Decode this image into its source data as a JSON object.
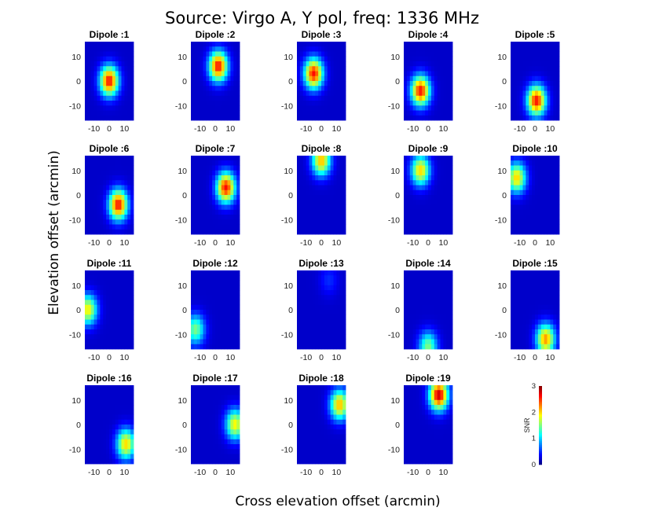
{
  "chart_data": {
    "type": "heatmap",
    "title": "Source: Virgo A, Y pol, freq: 1336 MHz",
    "xlabel": "Cross elevation offset (arcmin)",
    "ylabel": "Elevation offset (arcmin)",
    "xlim": [
      -16,
      16
    ],
    "ylim": [
      -16,
      16
    ],
    "xticks": [
      -10,
      0,
      10
    ],
    "yticks": [
      -10,
      0,
      10
    ],
    "grid": false,
    "colormap": "jet",
    "colorbar": {
      "label": "SNR",
      "range": [
        0,
        3
      ],
      "ticks": [
        0,
        1,
        2,
        3
      ]
    },
    "panels": [
      {
        "title": "Dipole :1",
        "peak_x": 0,
        "peak_y": 0,
        "peak_snr": 2.6
      },
      {
        "title": "Dipole :2",
        "peak_x": 2,
        "peak_y": 6,
        "peak_snr": 2.6
      },
      {
        "title": "Dipole :3",
        "peak_x": -5,
        "peak_y": 3,
        "peak_snr": 2.6
      },
      {
        "title": "Dipole :4",
        "peak_x": -5,
        "peak_y": -4,
        "peak_snr": 2.6
      },
      {
        "title": "Dipole :5",
        "peak_x": 1,
        "peak_y": -8,
        "peak_snr": 2.6
      },
      {
        "title": "Dipole :6",
        "peak_x": 6,
        "peak_y": -4,
        "peak_snr": 2.6
      },
      {
        "title": "Dipole :7",
        "peak_x": 7,
        "peak_y": 3,
        "peak_snr": 2.6
      },
      {
        "title": "Dipole :8",
        "peak_x": 0,
        "peak_y": 14,
        "peak_snr": 2.1
      },
      {
        "title": "Dipole :9",
        "peak_x": -5,
        "peak_y": 10,
        "peak_snr": 2.0
      },
      {
        "title": "Dipole :10",
        "peak_x": -12,
        "peak_y": 7,
        "peak_snr": 2.0
      },
      {
        "title": "Dipole :11",
        "peak_x": -14,
        "peak_y": 0,
        "peak_snr": 1.9
      },
      {
        "title": "Dipole :12",
        "peak_x": -13,
        "peak_y": -8,
        "peak_snr": 1.5
      },
      {
        "title": "Dipole :13",
        "peak_x": 5,
        "peak_y": 12,
        "peak_snr": 0.5
      },
      {
        "title": "Dipole :14",
        "peak_x": 0,
        "peak_y": -15,
        "peak_snr": 1.5
      },
      {
        "title": "Dipole :15",
        "peak_x": 7,
        "peak_y": -12,
        "peak_snr": 2.2
      },
      {
        "title": "Dipole :16",
        "peak_x": 11,
        "peak_y": -8,
        "peak_snr": 2.0
      },
      {
        "title": "Dipole :17",
        "peak_x": 13,
        "peak_y": 0,
        "peak_snr": 1.9
      },
      {
        "title": "Dipole :18",
        "peak_x": 12,
        "peak_y": 8,
        "peak_snr": 2.1
      },
      {
        "title": "Dipole :19",
        "peak_x": 7,
        "peak_y": 12,
        "peak_snr": 2.8
      }
    ]
  }
}
